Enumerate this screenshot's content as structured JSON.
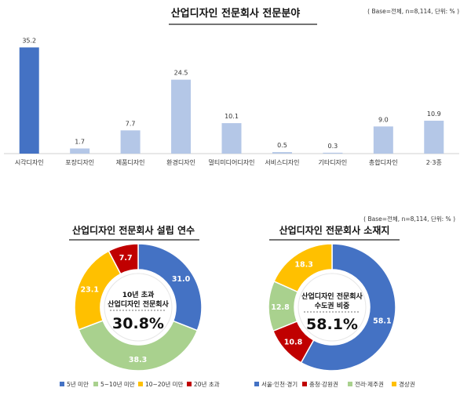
{
  "chart_data": [
    {
      "type": "bar",
      "title": "산업디자인 전문회사 전문분야",
      "note": "( Base=전체, n=8,114, 단위: % )",
      "categories": [
        "시각디자인",
        "포장디자인",
        "제품디자인",
        "환경디자인",
        "멀티미디어디자인",
        "서비스디자인",
        "기타디자인",
        "총합디자인",
        "2·3종"
      ],
      "values": [
        35.2,
        1.7,
        7.7,
        24.5,
        10.1,
        0.5,
        0.3,
        9.0,
        10.9
      ],
      "value_labels": [
        "35.2",
        "1.7",
        "7.7",
        "24.5",
        "10.1",
        "0.5",
        "0.3",
        "9.0",
        "10.9"
      ],
      "highlight_index": 0,
      "colors": {
        "highlight": "#4472c4",
        "normal": "#b4c7e7"
      },
      "ylim": [
        0,
        40
      ],
      "grid": false
    },
    {
      "type": "pie",
      "title": "산업디자인 전문회사 설립 연수",
      "center_text": [
        "10년 초과",
        "산업디자인 전문회사"
      ],
      "center_value": "30.8%",
      "series": [
        {
          "name": "5년 미만",
          "value": 31.0,
          "label": "31.0",
          "color": "#4472c4"
        },
        {
          "name": "5~10년 미만",
          "value": 38.3,
          "label": "38.3",
          "color": "#a9d18e"
        },
        {
          "name": "10~20년 미만",
          "value": 23.1,
          "label": "23.1",
          "color": "#ffc000"
        },
        {
          "name": "20년 초과",
          "value": 7.7,
          "label": "7.7",
          "color": "#c00000"
        }
      ]
    },
    {
      "type": "pie",
      "title": "산업디자인 전문회사 소재지",
      "note": "( Base=전체, n=8,114, 단위: % )",
      "center_text": [
        "산업디자인 전문회사",
        "수도권 비중"
      ],
      "center_value": "58.1%",
      "series": [
        {
          "name": "서울·인천·경기",
          "value": 58.1,
          "label": "58.1",
          "color": "#4472c4"
        },
        {
          "name": "충청·강원권",
          "value": 10.8,
          "label": "10.8",
          "color": "#c00000"
        },
        {
          "name": "전라·제주권",
          "value": 12.8,
          "label": "12.8",
          "color": "#a9d18e"
        },
        {
          "name": "경상권",
          "value": 18.3,
          "label": "18.3",
          "color": "#ffc000"
        }
      ]
    }
  ]
}
